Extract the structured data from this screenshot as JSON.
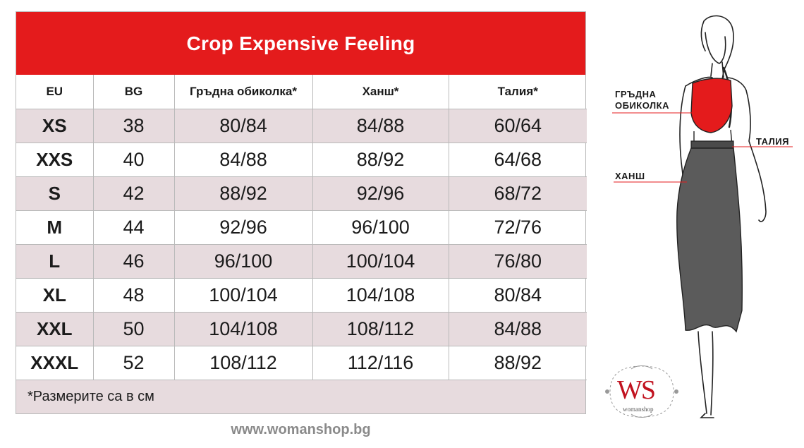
{
  "title": "Crop Expensive Feeling",
  "columns": [
    "EU",
    "BG",
    "Гръдна обиколка*",
    "Ханш*",
    "Талия*"
  ],
  "rows": [
    [
      "XS",
      "38",
      "80/84",
      "84/88",
      "60/64"
    ],
    [
      "XXS",
      "40",
      "84/88",
      "88/92",
      "64/68"
    ],
    [
      "S",
      "42",
      "88/92",
      "92/96",
      "68/72"
    ],
    [
      "M",
      "44",
      "92/96",
      "96/100",
      "72/76"
    ],
    [
      "L",
      "46",
      "96/100",
      "100/104",
      "76/80"
    ],
    [
      "XL",
      "48",
      "100/104",
      "104/108",
      "80/84"
    ],
    [
      "XXL",
      "50",
      "104/108",
      "108/112",
      "84/88"
    ],
    [
      "XXXL",
      "52",
      "108/112",
      "112/116",
      "88/92"
    ]
  ],
  "footnote": "*Размерите са в см",
  "website": "www.womanshop.bg",
  "figure": {
    "labels": {
      "bust_line1": "ГРЪДНА",
      "bust_line2": "ОБИКОЛКА",
      "waist": "ТАЛИЯ",
      "hips": "ХАНШ"
    }
  },
  "logo": {
    "mark": "WS",
    "name": "womanshop"
  },
  "colors": {
    "accent_red": "#e41b1c",
    "row_shade": "#e7dbde",
    "border": "#b9b9b9",
    "skirt_gray": "#5b5b5b",
    "website_gray": "#8a8a8a"
  }
}
